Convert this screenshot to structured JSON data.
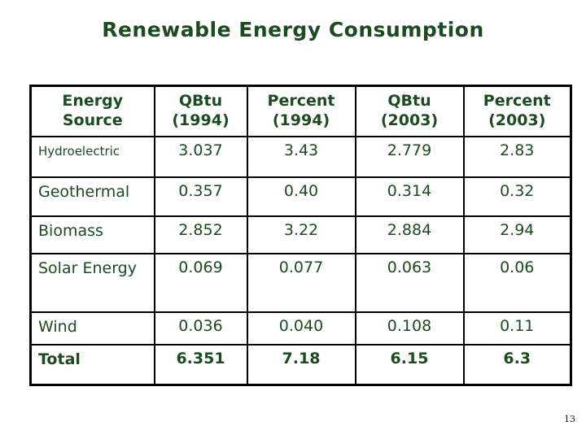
{
  "slide": {
    "title": "Renewable Energy Consumption",
    "page_number": "13"
  },
  "colors": {
    "text_green": "#1c4a21",
    "border": "#000000",
    "background": "#ffffff"
  },
  "table": {
    "headers": [
      {
        "line1": "Energy",
        "line2": "Source"
      },
      {
        "line1": "QBtu",
        "line2": "(1994)"
      },
      {
        "line1": "Percent",
        "line2": "(1994)"
      },
      {
        "line1": "QBtu",
        "line2": "(2003)"
      },
      {
        "line1": "Percent",
        "line2": "(2003)"
      }
    ],
    "rows": [
      {
        "source": "Hydroelectric",
        "qbtu_1994": "3.037",
        "percent_1994": "3.43",
        "qbtu_2003": "2.779",
        "percent_2003": "2.83"
      },
      {
        "source": "Geothermal",
        "qbtu_1994": "0.357",
        "percent_1994": "0.40",
        "qbtu_2003": "0.314",
        "percent_2003": "0.32"
      },
      {
        "source": "Biomass",
        "qbtu_1994": "2.852",
        "percent_1994": "3.22",
        "qbtu_2003": "2.884",
        "percent_2003": "2.94"
      },
      {
        "source": "Solar Energy",
        "qbtu_1994": "0.069",
        "percent_1994": "0.077",
        "qbtu_2003": "0.063",
        "percent_2003": "0.06"
      },
      {
        "source": "Wind",
        "qbtu_1994": "0.036",
        "percent_1994": "0.040",
        "qbtu_2003": "0.108",
        "percent_2003": "0.11"
      },
      {
        "source": "Total",
        "qbtu_1994": "6.351",
        "percent_1994": "7.18",
        "qbtu_2003": "6.15",
        "percent_2003": "6.3"
      }
    ]
  }
}
